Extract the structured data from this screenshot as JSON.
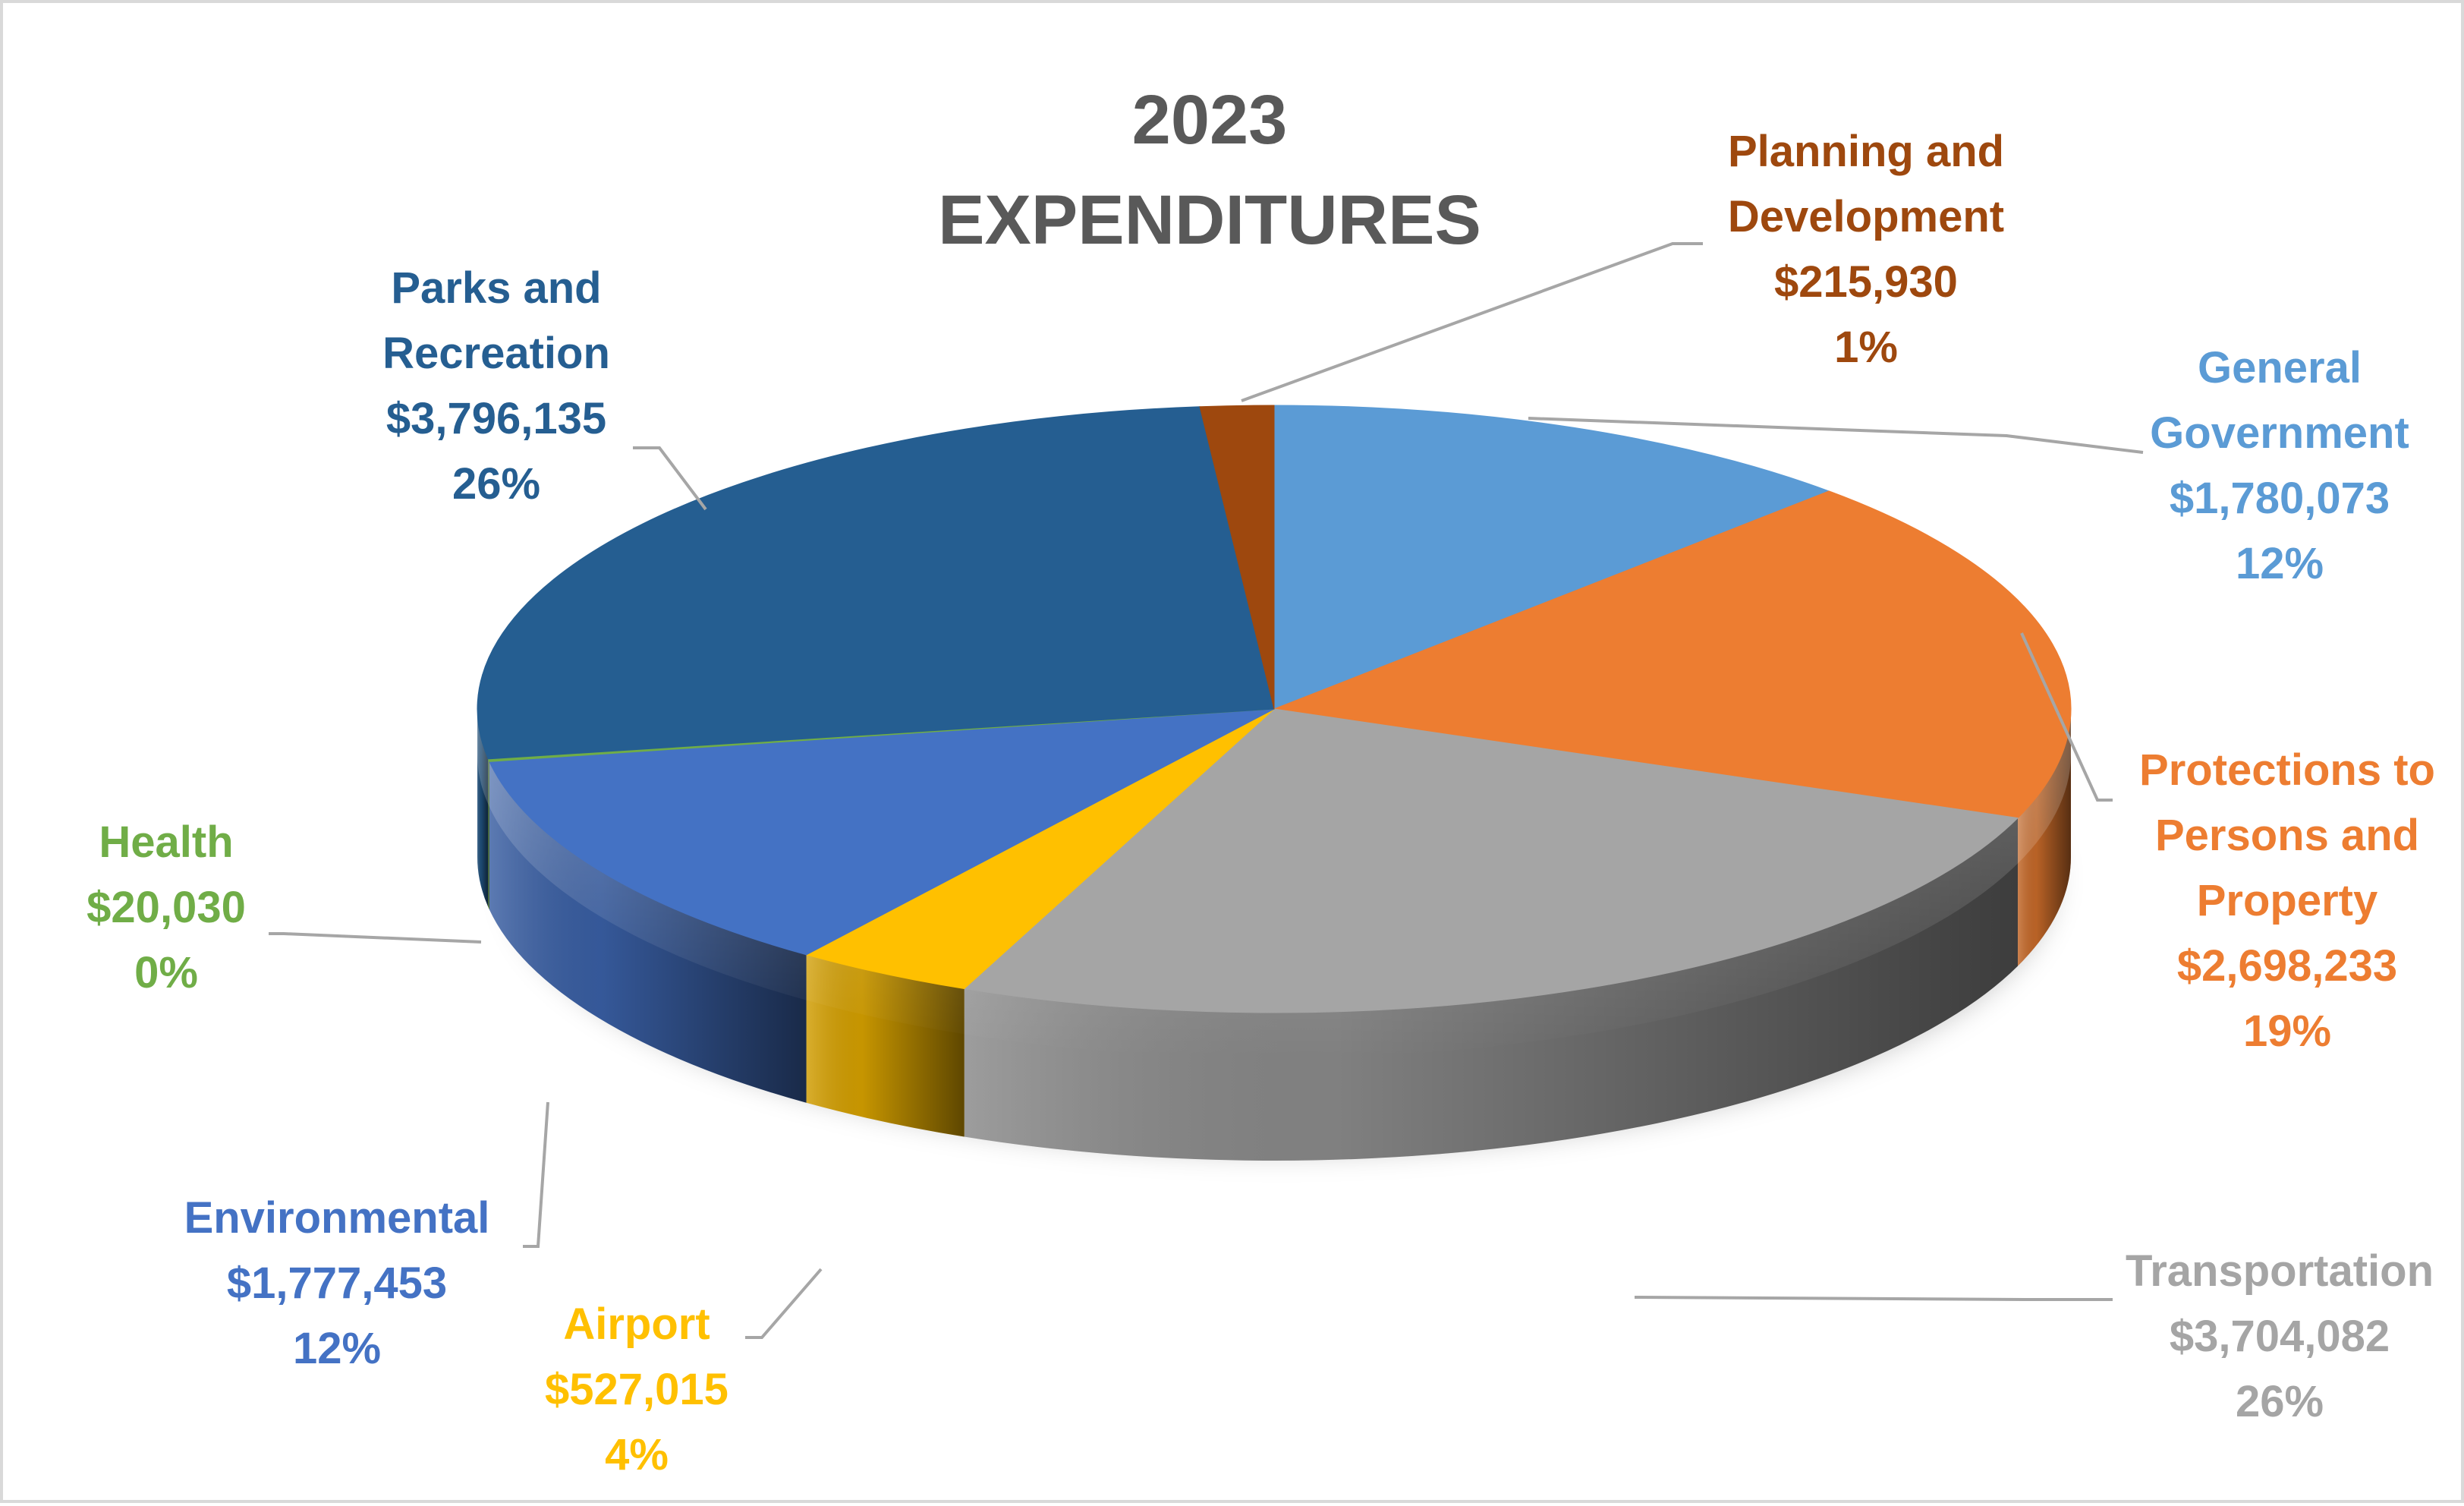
{
  "chart_data": {
    "type": "pie",
    "title_lines": [
      "2023",
      "EXPENDITURES"
    ],
    "slices": [
      {
        "name": "General Government",
        "label_lines": [
          "General",
          "Government"
        ],
        "amount": "$1,780,073",
        "value": 1780073,
        "percent": "12%",
        "color": "#5b9bd5"
      },
      {
        "name": "Protections to Persons and Property",
        "label_lines": [
          "Protections to",
          "Persons and",
          "Property"
        ],
        "amount": "$2,698,233",
        "value": 2698233,
        "percent": "19%",
        "color": "#ed7d31"
      },
      {
        "name": "Transportation",
        "label_lines": [
          "Transportation"
        ],
        "amount": "$3,704,082",
        "value": 3704082,
        "percent": "26%",
        "color": "#a5a5a5",
        "label_color": "#a5a5a5"
      },
      {
        "name": "Airport",
        "label_lines": [
          "Airport"
        ],
        "amount": "$527,015",
        "value": 527015,
        "percent": "4%",
        "color": "#ffc000"
      },
      {
        "name": "Environmental",
        "label_lines": [
          "Environmental"
        ],
        "amount": "$1,777,453",
        "value": 1777453,
        "percent": "12%",
        "color": "#4472c4"
      },
      {
        "name": "Health",
        "label_lines": [
          "Health"
        ],
        "amount": "$20,030",
        "value": 20030,
        "percent": "0%",
        "color": "#70ad47"
      },
      {
        "name": "Parks and Recreation",
        "label_lines": [
          "Parks and",
          "Recreation"
        ],
        "amount": "$3,796,135",
        "value": 3796135,
        "percent": "26%",
        "color": "#255e91"
      },
      {
        "name": "Planning and Development",
        "label_lines": [
          "Planning and",
          "Development"
        ],
        "amount": "$215,930",
        "value": 215930,
        "percent": "1%",
        "color": "#9e480e"
      }
    ]
  }
}
